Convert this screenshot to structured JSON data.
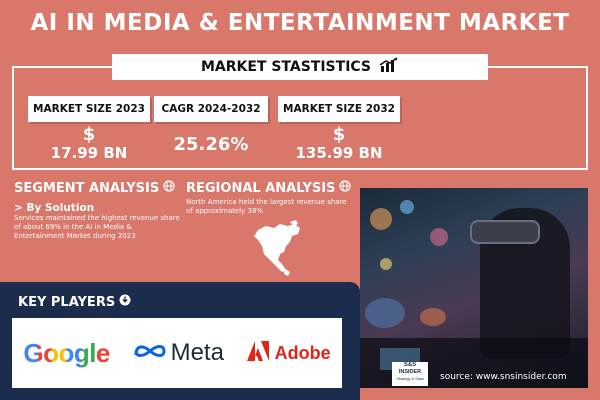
{
  "title": "AI IN MEDIA & ENTERTAINMENT MARKET",
  "market_stats": {
    "header": "MARKET STASTISTICS",
    "boxes": [
      {
        "label": "MARKET SIZE 2023",
        "currency": "$",
        "value": "17.99 BN"
      },
      {
        "label": "CAGR 2024-2032",
        "currency": "",
        "value": "25.26%"
      },
      {
        "label": "MARKET SIZE 2032",
        "currency": "$",
        "value": "135.99 BN"
      }
    ]
  },
  "segment": {
    "title": "SEGMENT ANALYSIS",
    "subtitle": "> By Solution",
    "text": "Services maintained the highest revenue share of about 69% in the AI in Media & Entertainment Market during 2023"
  },
  "regional": {
    "title": "REGIONAL ANALYSIS",
    "text": "North America held the largest revenue share of approximately 38%"
  },
  "key_players": {
    "title": "KEY PLAYERS",
    "logos": [
      "Google",
      "Meta",
      "Adobe"
    ]
  },
  "source": "source: www.snsinsider.com",
  "badge": {
    "line1": "S&S",
    "line2": "INSIDER",
    "line3": "Strategy & Stats"
  },
  "colors": {
    "background": "#d8776a",
    "panel": "#1b2c4d",
    "adobe_red": "#e1251b",
    "meta_blue": "#0668e1"
  }
}
